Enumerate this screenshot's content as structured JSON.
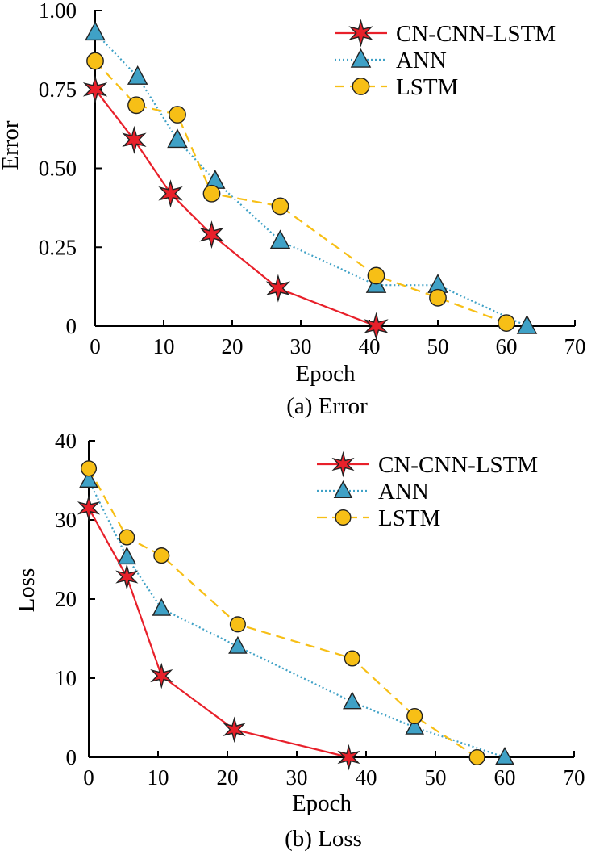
{
  "chart_data": [
    {
      "type": "line",
      "caption": "(a)  Error",
      "xlabel": "Epoch",
      "ylabel": "Error",
      "xlim": [
        0,
        70
      ],
      "ylim": [
        0,
        1.0
      ],
      "xticks": [
        "0",
        "10",
        "20",
        "30",
        "40",
        "50",
        "60",
        "70"
      ],
      "yticks": [
        "0",
        "0.25",
        "0.50",
        "0.75",
        "1.00"
      ],
      "xtick_values": [
        0,
        10,
        20,
        30,
        40,
        50,
        60,
        70
      ],
      "ytick_values": [
        0,
        0.25,
        0.5,
        0.75,
        1.0
      ],
      "grid": false,
      "legend_position": "top-right",
      "series": [
        {
          "name": "CN-CNN-LSTM",
          "color": "#e8202a",
          "marker": "star",
          "line_style": "solid",
          "x": [
            0,
            5.7,
            11,
            17,
            26.7,
            41
          ],
          "y": [
            0.75,
            0.59,
            0.42,
            0.29,
            0.12,
            0.0
          ]
        },
        {
          "name": "ANN",
          "color": "#3fa1c6",
          "marker": "triangle",
          "line_style": "dotted",
          "x": [
            0,
            6.2,
            12,
            17.5,
            27,
            41,
            50,
            63
          ],
          "y": [
            0.93,
            0.79,
            0.59,
            0.46,
            0.27,
            0.13,
            0.13,
            0.0
          ]
        },
        {
          "name": "LSTM",
          "color": "#f7bf16",
          "marker": "circle",
          "line_style": "dashed",
          "x": [
            0,
            6,
            12,
            17,
            27,
            41,
            50,
            60
          ],
          "y": [
            0.84,
            0.7,
            0.67,
            0.42,
            0.38,
            0.16,
            0.09,
            0.01
          ]
        }
      ]
    },
    {
      "type": "line",
      "caption": "(b)  Loss",
      "xlabel": "Epoch",
      "ylabel": "Loss",
      "xlim": [
        0,
        70
      ],
      "ylim": [
        0,
        40
      ],
      "xticks": [
        "0",
        "10",
        "20",
        "30",
        "40",
        "50",
        "60",
        "70"
      ],
      "yticks": [
        "0",
        "10",
        "20",
        "30",
        "40"
      ],
      "xtick_values": [
        0,
        10,
        20,
        30,
        40,
        50,
        60,
        70
      ],
      "ytick_values": [
        0,
        10,
        20,
        30,
        40
      ],
      "grid": false,
      "legend_position": "top-right",
      "series": [
        {
          "name": "CN-CNN-LSTM",
          "color": "#e8202a",
          "marker": "star",
          "line_style": "solid",
          "x": [
            0,
            5.5,
            10.5,
            21,
            37.5
          ],
          "y": [
            31.5,
            22.8,
            10.3,
            3.5,
            0.0
          ]
        },
        {
          "name": "ANN",
          "color": "#3fa1c6",
          "marker": "triangle",
          "line_style": "dotted",
          "x": [
            0,
            5.5,
            10.5,
            21.5,
            38,
            47,
            60
          ],
          "y": [
            35.0,
            25.3,
            18.8,
            14.0,
            7.0,
            3.8,
            0.0
          ]
        },
        {
          "name": "LSTM",
          "color": "#f7bf16",
          "marker": "circle",
          "line_style": "dashed",
          "x": [
            0,
            5.5,
            10.5,
            21.5,
            38,
            47,
            56
          ],
          "y": [
            36.5,
            27.8,
            25.5,
            16.8,
            12.5,
            5.2,
            0.0
          ]
        }
      ]
    }
  ]
}
